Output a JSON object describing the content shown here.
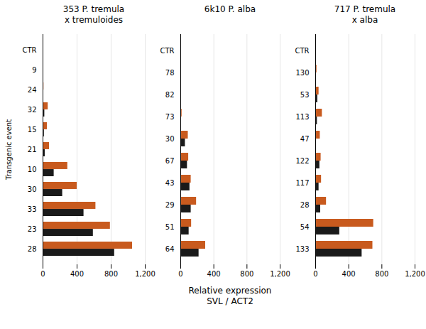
{
  "chart_data": [
    {
      "type": "bar",
      "orientation": "horizontal",
      "title": "353 P. tremula\nx tremuloides",
      "ylabel": "Transgenic event",
      "categories": [
        "CTR",
        "9",
        "24",
        "32",
        "15",
        "21",
        "10",
        "30",
        "33",
        "23",
        "28"
      ],
      "series": [
        {
          "color": "#c85a1e",
          "values": [
            0,
            5,
            10,
            60,
            50,
            75,
            290,
            400,
            620,
            790,
            1050
          ]
        },
        {
          "color": "#1a1a1a",
          "values": [
            0,
            0,
            0,
            20,
            15,
            25,
            130,
            230,
            480,
            590,
            840
          ]
        }
      ],
      "xlim": [
        0,
        1200
      ],
      "xticks": [
        0,
        400,
        800,
        1200
      ],
      "grid": true
    },
    {
      "type": "bar",
      "orientation": "horizontal",
      "title": "6k10 P. alba",
      "xlabel": "Relative expression\nSVL / ACT2",
      "categories": [
        "CTR",
        "78",
        "82",
        "73",
        "30",
        "67",
        "43",
        "29",
        "51",
        "64"
      ],
      "series": [
        {
          "color": "#c85a1e",
          "values": [
            0,
            5,
            5,
            15,
            90,
            95,
            125,
            190,
            130,
            300
          ]
        },
        {
          "color": "#1a1a1a",
          "values": [
            0,
            0,
            0,
            5,
            55,
            80,
            110,
            125,
            100,
            220
          ]
        }
      ],
      "xlim": [
        0,
        1200
      ],
      "xticks": [
        0,
        400,
        800,
        1200
      ],
      "grid": true
    },
    {
      "type": "bar",
      "orientation": "horizontal",
      "title": "717 P. tremula\nx alba",
      "categories": [
        "CTR",
        "130",
        "53",
        "113",
        "47",
        "122",
        "117",
        "28",
        "54",
        "133"
      ],
      "series": [
        {
          "color": "#c85a1e",
          "values": [
            0,
            15,
            40,
            80,
            55,
            65,
            70,
            130,
            700,
            690
          ]
        },
        {
          "color": "#1a1a1a",
          "values": [
            0,
            0,
            25,
            20,
            0,
            50,
            40,
            60,
            290,
            560
          ]
        }
      ],
      "xlim": [
        0,
        1200
      ],
      "xticks": [
        0,
        400,
        800,
        1200
      ],
      "grid": true
    }
  ]
}
